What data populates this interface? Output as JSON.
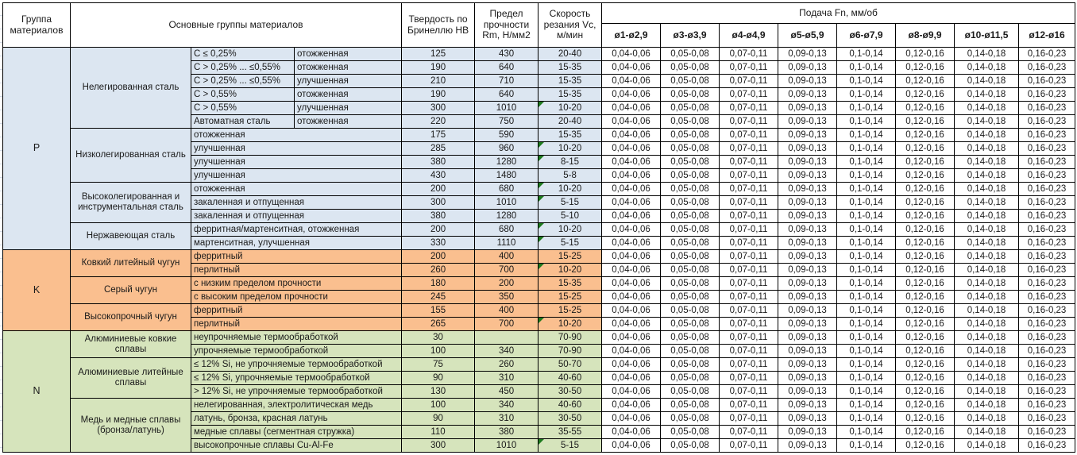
{
  "header": {
    "col_group": "Группа материалов",
    "col_main": "Основные группы материалов",
    "col_hb": "Твердость по Бринеллю HB",
    "col_rm": "Предел прочности Rm, Н/мм2",
    "col_vc": "Скорость резания Vc, м/мин",
    "feed_title": "Подача Fn, мм/об",
    "feed_cols": [
      "ø1-ø2,9",
      "ø3-ø3,9",
      "ø4-ø4,9",
      "ø5-ø5,9",
      "ø6-ø7,9",
      "ø8-ø9,9",
      "ø10-ø11,5",
      "ø12-ø16"
    ]
  },
  "feed_values": [
    "0,04-0,06",
    "0,05-0,08",
    "0,07-0,11",
    "0,09-0,13",
    "0,1-0,14",
    "0,12-0,16",
    "0,14-0,18",
    "0,16-0,23"
  ],
  "colors": {
    "group_p": "#DCE6F1",
    "group_k": "#FABF8F",
    "group_n": "#D6E4BC",
    "comment_indicator": "#1e7b1e",
    "border": "#000000"
  },
  "groups": [
    {
      "code": "P",
      "color": "#DCE6F1",
      "subgroups": [
        {
          "name": "Нелегированная сталь",
          "rows": [
            {
              "a": "C ≤ 0,25%",
              "b": "отожженная",
              "hb": "125",
              "rm": "430",
              "vc": "20-40",
              "note": false
            },
            {
              "a": "C > 0,25% ... ≤0,55%",
              "b": "отожженная",
              "hb": "190",
              "rm": "640",
              "vc": "15-35",
              "note": false
            },
            {
              "a": "C > 0,25% ... ≤0,55%",
              "b": "улучшенная",
              "hb": "210",
              "rm": "710",
              "vc": "15-35",
              "note": false
            },
            {
              "a": "C > 0,55%",
              "b": "отожженная",
              "hb": "190",
              "rm": "640",
              "vc": "15-35",
              "note": false
            },
            {
              "a": "C > 0,55%",
              "b": "улучшенная",
              "hb": "300",
              "rm": "1010",
              "vc": "10-20",
              "note": true
            },
            {
              "a": "Автоматная сталь",
              "b": "отожженная",
              "hb": "220",
              "rm": "750",
              "vc": "20-40",
              "note": false
            }
          ]
        },
        {
          "name": "Низколегированная сталь",
          "rows": [
            {
              "a": "отожженная",
              "hb": "175",
              "rm": "590",
              "vc": "15-35",
              "note": false
            },
            {
              "a": "улучшенная",
              "hb": "285",
              "rm": "960",
              "vc": "10-20",
              "note": true
            },
            {
              "a": "улучшенная",
              "hb": "380",
              "rm": "1280",
              "vc": "8-15",
              "note": true
            },
            {
              "a": "улучшенная",
              "hb": "430",
              "rm": "1480",
              "vc": "5-8",
              "note": false
            }
          ]
        },
        {
          "name": "Высоколегированная и инструментальная сталь",
          "rows": [
            {
              "a": "отожженная",
              "hb": "200",
              "rm": "680",
              "vc": "10-20",
              "note": true
            },
            {
              "a": "закаленная и отпущенная",
              "hb": "300",
              "rm": "1010",
              "vc": "5-15",
              "note": true
            },
            {
              "a": "закаленная и отпущенная",
              "hb": "380",
              "rm": "1280",
              "vc": "5-10",
              "note": false
            }
          ]
        },
        {
          "name": "Нержавеющая сталь",
          "rows": [
            {
              "a": "ферритная/мартенситная, отожженная",
              "hb": "200",
              "rm": "680",
              "vc": "10-20",
              "note": true
            },
            {
              "a": "мартенситная, улучшенная",
              "hb": "330",
              "rm": "1110",
              "vc": "5-15",
              "note": true
            }
          ]
        }
      ]
    },
    {
      "code": "K",
      "color": "#FABF8F",
      "subgroups": [
        {
          "name": "Ковкий литейный чугун",
          "rows": [
            {
              "a": "ферритный",
              "hb": "200",
              "rm": "400",
              "vc": "15-25",
              "note": false
            },
            {
              "a": "перлитный",
              "hb": "260",
              "rm": "700",
              "vc": "10-20",
              "note": true
            }
          ]
        },
        {
          "name": "Серый чугун",
          "rows": [
            {
              "a": "с низким пределом прочности",
              "hb": "180",
              "rm": "200",
              "vc": "15-35",
              "note": false
            },
            {
              "a": "с высоким пределом прочности",
              "hb": "245",
              "rm": "350",
              "vc": "15-25",
              "note": false
            }
          ]
        },
        {
          "name": "Высокопрочный чугун",
          "rows": [
            {
              "a": "ферритный",
              "hb": "155",
              "rm": "400",
              "vc": "15-25",
              "note": false
            },
            {
              "a": "перлитный",
              "hb": "265",
              "rm": "700",
              "vc": "10-20",
              "note": true
            }
          ]
        }
      ]
    },
    {
      "code": "N",
      "color": "#D6E4BC",
      "subgroups": [
        {
          "name": "Алюминиевые ковкие сплавы",
          "rows": [
            {
              "a": "неупрочняемые термообработкой",
              "hb": "30",
              "rm": "",
              "vc": "70-90",
              "note": false
            },
            {
              "a": "упрочняемые термообработкой",
              "hb": "100",
              "rm": "340",
              "vc": "70-90",
              "note": false
            }
          ]
        },
        {
          "name": "Алюминиевые литейные сплавы",
          "rows": [
            {
              "a": "≤ 12% Si, не упрочняемые термообработкой",
              "hb": "75",
              "rm": "260",
              "vc": "50-70",
              "note": false
            },
            {
              "a": "≤ 12% Si, упрочняемые термообработкой",
              "hb": "90",
              "rm": "310",
              "vc": "40-60",
              "note": false
            },
            {
              "a": "> 12% Si, не упрочняемые термообработкой",
              "hb": "130",
              "rm": "450",
              "vc": "30-50",
              "note": false
            }
          ]
        },
        {
          "name": "Медь и медные сплавы (бронза/латунь)",
          "rows": [
            {
              "a": "нелегированная, электролитическая медь",
              "hb": "100",
              "rm": "340",
              "vc": "40-60",
              "note": false
            },
            {
              "a": "латунь, бронза, красная латунь",
              "hb": "90",
              "rm": "310",
              "vc": "30-50",
              "note": false
            },
            {
              "a": "медные сплавы (сегментная стружка)",
              "hb": "110",
              "rm": "380",
              "vc": "35-55",
              "note": false
            },
            {
              "a": "высокопрочные сплавы Cu-Al-Fe",
              "hb": "300",
              "rm": "1010",
              "vc": "5-15",
              "note": true
            }
          ]
        }
      ]
    }
  ]
}
